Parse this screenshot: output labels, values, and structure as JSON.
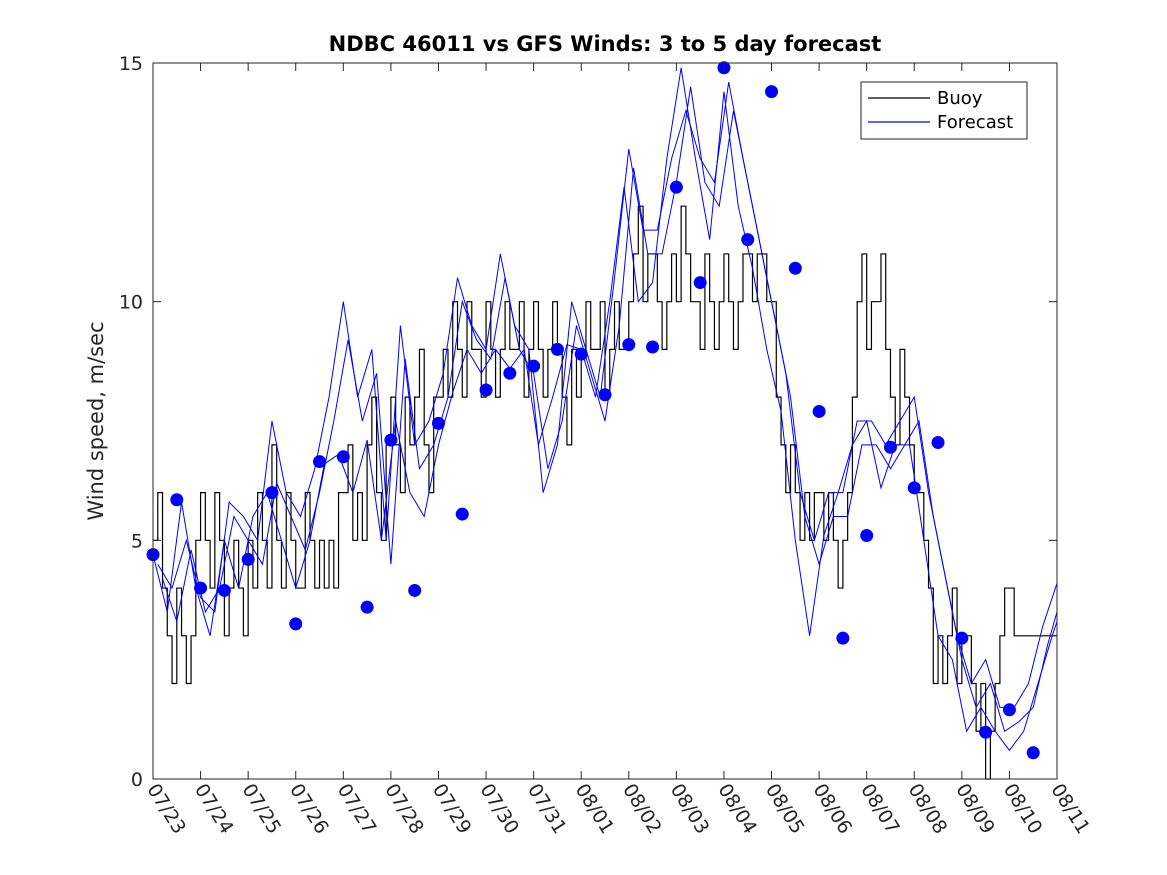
{
  "chart_data": {
    "type": "line",
    "title": "NDBC 46011 vs GFS Winds: 3 to 5 day forecast",
    "xlabel": "",
    "ylabel": "Wind speed, m/sec",
    "ylim": [
      0,
      15
    ],
    "yticks": [
      0,
      5,
      10,
      15
    ],
    "xlim": [
      "07/23",
      "08/11"
    ],
    "xticks": [
      "07/23",
      "07/24",
      "07/25",
      "07/26",
      "07/27",
      "07/28",
      "07/29",
      "07/30",
      "07/31",
      "08/01",
      "08/02",
      "08/03",
      "08/04",
      "08/05",
      "08/06",
      "08/07",
      "08/08",
      "08/09",
      "08/10",
      "08/11"
    ],
    "grid": false,
    "legend_position": "top-right",
    "colors": {
      "buoy": "#000000",
      "forecast": "#0000ff",
      "axes": "#262626"
    },
    "buoy": {
      "name": "Buoy",
      "x": [
        0,
        0.1,
        0.2,
        0.3,
        0.4,
        0.5,
        0.6,
        0.7,
        0.8,
        0.9,
        1.0,
        1.1,
        1.2,
        1.3,
        1.4,
        1.5,
        1.6,
        1.7,
        1.8,
        1.9,
        2.0,
        2.1,
        2.2,
        2.3,
        2.4,
        2.5,
        2.6,
        2.7,
        2.8,
        2.9,
        3.0,
        3.1,
        3.2,
        3.3,
        3.4,
        3.5,
        3.6,
        3.7,
        3.8,
        3.9,
        4.0,
        4.1,
        4.2,
        4.3,
        4.4,
        4.5,
        4.6,
        4.7,
        4.8,
        4.9,
        5.0,
        5.1,
        5.2,
        5.3,
        5.4,
        5.5,
        5.6,
        5.7,
        5.8,
        5.9,
        6.0,
        6.1,
        6.2,
        6.3,
        6.4,
        6.5,
        6.6,
        6.7,
        6.8,
        6.9,
        7.0,
        7.1,
        7.2,
        7.3,
        7.4,
        7.5,
        7.6,
        7.7,
        7.8,
        7.9,
        8.0,
        8.1,
        8.2,
        8.3,
        8.4,
        8.5,
        8.6,
        8.7,
        8.8,
        8.9,
        9.0,
        9.1,
        9.2,
        9.3,
        9.4,
        9.5,
        9.6,
        9.7,
        9.8,
        9.9,
        10.0,
        10.1,
        10.2,
        10.3,
        10.4,
        10.5,
        10.6,
        10.7,
        10.8,
        10.9,
        11.0,
        11.1,
        11.2,
        11.3,
        11.4,
        11.5,
        11.6,
        11.7,
        11.8,
        11.9,
        12.0,
        12.1,
        12.2,
        12.3,
        12.4,
        12.5,
        12.6,
        12.7,
        12.8,
        12.9,
        13.0,
        13.1,
        13.2,
        13.3,
        13.4,
        13.5,
        13.6,
        13.7,
        13.8,
        13.9,
        14.0,
        14.1,
        14.2,
        14.3,
        14.4,
        14.5,
        14.6,
        14.7,
        14.8,
        14.9,
        15.0,
        15.1,
        15.2,
        15.3,
        15.4,
        15.5,
        15.6,
        15.7,
        15.8,
        15.9,
        16.0,
        16.1,
        16.2,
        16.3,
        16.4,
        16.5,
        16.6,
        16.7,
        16.8,
        16.9,
        17.0,
        17.1,
        17.2,
        17.3,
        17.4,
        17.5,
        17.6,
        17.7,
        17.8,
        17.9,
        18.0,
        18.1,
        18.2,
        18.3,
        18.4,
        18.5,
        18.6,
        18.7,
        18.8,
        18.9,
        19.0
      ],
      "y": [
        5,
        6,
        4,
        3,
        2,
        4,
        3,
        2,
        3,
        5,
        6,
        5,
        4,
        6,
        5,
        3,
        4,
        5,
        4,
        3,
        5,
        4,
        6,
        5,
        4,
        7,
        5,
        4,
        6,
        5,
        4,
        4,
        6,
        5,
        4,
        5,
        4,
        5,
        4,
        6,
        6,
        7,
        5,
        6,
        5,
        7,
        8,
        6,
        5,
        7,
        8,
        7,
        6,
        8,
        7,
        8,
        9,
        7,
        6,
        8,
        8,
        9,
        8,
        10,
        9,
        8,
        10,
        9,
        9,
        8,
        10,
        9,
        8,
        9,
        10,
        9,
        9,
        10,
        8,
        9,
        10,
        9,
        8,
        9,
        10,
        9,
        8,
        7,
        9,
        8,
        9,
        10,
        9,
        9,
        10,
        8,
        9,
        10,
        9,
        9,
        10,
        11,
        12,
        10,
        11,
        11,
        10,
        9,
        10,
        11,
        10,
        12,
        11,
        10,
        10,
        9,
        11,
        10,
        9,
        10,
        11,
        10,
        9,
        10,
        11,
        11,
        10,
        11,
        11,
        10,
        10,
        8,
        7,
        6,
        7,
        6,
        5,
        6,
        5,
        6,
        6,
        5,
        6,
        5,
        4,
        5,
        6,
        8,
        10,
        11,
        9,
        10,
        10,
        11,
        9,
        8,
        7,
        9,
        8,
        7,
        6,
        6,
        5,
        4,
        2,
        3,
        2,
        3,
        4,
        2,
        3,
        3,
        2,
        1,
        2,
        0,
        1,
        2,
        3,
        4,
        4,
        3,
        3,
        3,
        3,
        3,
        3,
        3,
        3,
        3,
        3
      ]
    },
    "forecast": {
      "name": "Forecast",
      "runs": [
        {
          "x": [
            0,
            0.3,
            0.6,
            0.9,
            1.2,
            1.5,
            1.8,
            2.1,
            2.4,
            2.7,
            3.0,
            3.3,
            3.6,
            3.9,
            4.2,
            4.5,
            4.8,
            5.1,
            5.4,
            5.7,
            6.0,
            6.3,
            6.6,
            6.9,
            7.2,
            7.5,
            7.8,
            8.1,
            8.4,
            8.7,
            9.0,
            9.3,
            9.6,
            9.9,
            10.2,
            10.5,
            10.8,
            11.1,
            11.4,
            11.7,
            12.0,
            12.3,
            12.6,
            12.9,
            13.2,
            13.5,
            13.8,
            14.1,
            14.4,
            14.7,
            15.0,
            15.3,
            15.6,
            15.9,
            16.2,
            16.5,
            16.8,
            17.1,
            17.4,
            17.7,
            18.0,
            18.3,
            18.6,
            18.9,
            19.0
          ],
          "y": [
            4.7,
            3.5,
            5.8,
            4.0,
            3.0,
            5.0,
            4.0,
            5.5,
            6.0,
            5.0,
            4.0,
            5.0,
            6.6,
            6.8,
            6.0,
            7.1,
            5.0,
            7.5,
            6.0,
            5.5,
            7.0,
            8.1,
            9.0,
            8.5,
            9.0,
            8.6,
            9.0,
            7.0,
            8.0,
            9.1,
            9.0,
            8.0,
            10.0,
            12.4,
            10.0,
            10.4,
            13.0,
            14.9,
            13.0,
            11.3,
            14.4,
            12.0,
            10.7,
            9.0,
            7.7,
            5.0,
            3.0,
            5.1,
            6.0,
            7.0,
            7.5,
            6.1,
            7.0,
            7.0,
            5.0,
            3.0,
            2.5,
            1.0,
            1.5,
            1.0,
            0.6,
            1.0,
            2.0,
            3.0,
            3.3
          ]
        },
        {
          "x": [
            0.2,
            0.5,
            0.8,
            1.1,
            1.4,
            1.7,
            2.0,
            2.3,
            2.6,
            2.9,
            3.2,
            3.5,
            3.8,
            4.1,
            4.4,
            4.7,
            5.0,
            5.3,
            5.6,
            5.9,
            6.2,
            6.5,
            6.8,
            7.1,
            7.4,
            7.7,
            8.0,
            8.3,
            8.6,
            8.9,
            9.2,
            9.5,
            9.8,
            10.1,
            10.4,
            10.7,
            11.0,
            11.3,
            11.6,
            11.9,
            12.2,
            12.5,
            12.8,
            13.1,
            13.4,
            13.7,
            14.0,
            14.3,
            14.6,
            14.9,
            15.2,
            15.5,
            15.8,
            16.1,
            16.4,
            16.7,
            17.0,
            17.3,
            17.6,
            17.9,
            18.2,
            18.5,
            18.8,
            19.0
          ],
          "y": [
            4.2,
            3.3,
            4.8,
            3.5,
            4.0,
            5.5,
            5.0,
            4.5,
            6.2,
            5.5,
            4.8,
            6.0,
            7.5,
            9.2,
            7.5,
            8.5,
            4.5,
            8.8,
            6.5,
            7.0,
            8.0,
            10.0,
            9.2,
            8.8,
            10.5,
            9.0,
            8.5,
            6.5,
            7.5,
            9.5,
            8.5,
            7.5,
            9.5,
            12.8,
            11.0,
            11.0,
            12.5,
            14.5,
            12.5,
            12.0,
            14.0,
            12.5,
            11.0,
            9.5,
            8.0,
            5.5,
            4.5,
            5.5,
            5.5,
            7.0,
            7.0,
            6.5,
            7.0,
            7.5,
            5.5,
            4.0,
            2.5,
            1.5,
            2.0,
            1.0,
            1.2,
            1.5,
            2.8,
            3.5
          ]
        },
        {
          "x": [
            0.1,
            0.4,
            0.7,
            1.0,
            1.3,
            1.6,
            1.9,
            2.2,
            2.5,
            2.8,
            3.1,
            3.4,
            3.7,
            4.0,
            4.3,
            4.6,
            4.9,
            5.2,
            5.5,
            5.8,
            6.1,
            6.4,
            6.7,
            7.0,
            7.3,
            7.6,
            7.9,
            8.2,
            8.5,
            8.8,
            9.1,
            9.4,
            9.7,
            10.0,
            10.3,
            10.6,
            10.9,
            11.2,
            11.5,
            11.8,
            12.1,
            12.4,
            12.7,
            13.0,
            13.3,
            13.6,
            13.9,
            14.2,
            14.5,
            14.8,
            15.1,
            15.4,
            15.7,
            16.0,
            16.3,
            16.6,
            16.9,
            17.2,
            17.5,
            17.8,
            18.1,
            18.4,
            18.7,
            19.0
          ],
          "y": [
            4.5,
            4.0,
            5.0,
            3.8,
            3.5,
            5.8,
            5.5,
            5.0,
            7.5,
            6.0,
            5.5,
            6.5,
            8.0,
            10.0,
            8.0,
            9.0,
            5.0,
            9.5,
            7.0,
            7.5,
            8.5,
            10.5,
            9.5,
            9.0,
            11.0,
            9.5,
            9.0,
            6.0,
            7.0,
            10.0,
            9.0,
            8.0,
            10.5,
            13.2,
            11.5,
            11.5,
            13.0,
            14.0,
            13.0,
            12.5,
            14.6,
            13.0,
            11.5,
            10.0,
            8.5,
            6.0,
            5.0,
            6.0,
            6.0,
            7.5,
            7.5,
            7.0,
            7.5,
            8.0,
            6.0,
            4.5,
            3.0,
            2.0,
            2.5,
            1.5,
            1.5,
            2.0,
            3.2,
            4.1
          ]
        }
      ],
      "markers": {
        "x": [
          0,
          0.5,
          1.0,
          1.5,
          2.0,
          2.5,
          3.0,
          3.5,
          4.0,
          4.5,
          5.0,
          5.5,
          6.0,
          6.5,
          7.0,
          7.5,
          8.0,
          8.5,
          9.0,
          9.5,
          10.0,
          10.5,
          11.0,
          11.5,
          12.0,
          12.5,
          13.0,
          13.5,
          14.0,
          14.5,
          15.0,
          15.5,
          16.0,
          16.5,
          17.0,
          17.5,
          18.0,
          18.5
        ],
        "y": [
          4.7,
          5.85,
          4.0,
          3.95,
          4.6,
          6.0,
          3.25,
          6.65,
          6.75,
          3.6,
          7.1,
          3.95,
          7.45,
          5.55,
          8.15,
          8.5,
          8.65,
          9.0,
          8.9,
          8.05,
          9.1,
          9.05,
          12.4,
          10.4,
          14.9,
          11.3,
          14.4,
          10.7,
          7.7,
          2.95,
          5.1,
          6.95,
          6.1,
          7.05,
          2.95,
          0.98,
          1.45,
          0.55
        ]
      }
    }
  },
  "legend": {
    "buoy_label": "Buoy",
    "forecast_label": "Forecast"
  }
}
